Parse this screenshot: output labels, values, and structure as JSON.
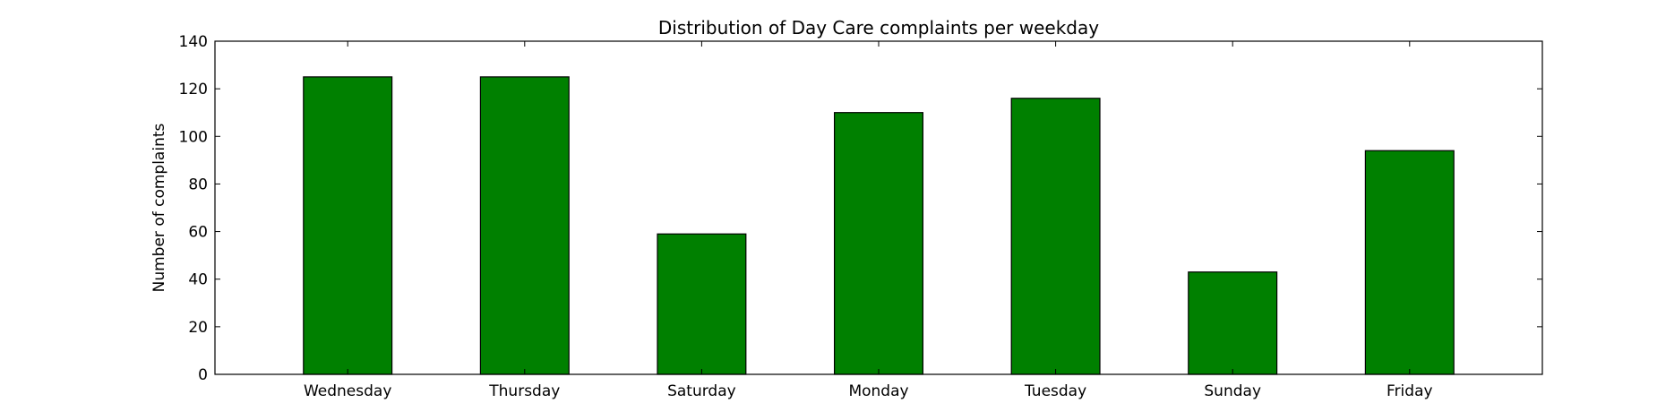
{
  "chart_data": {
    "type": "bar",
    "title": "Distribution of  Day Care complaints per weekday",
    "xlabel": "",
    "ylabel": "Number of complaints",
    "categories": [
      "Wednesday",
      "Thursday",
      "Saturday",
      "Monday",
      "Tuesday",
      "Sunday",
      "Friday"
    ],
    "values": [
      125,
      125,
      59,
      110,
      116,
      43,
      94
    ],
    "ylim": [
      0,
      140
    ],
    "yticks": [
      0,
      20,
      40,
      60,
      80,
      100,
      120,
      140
    ],
    "grid": false,
    "legend": "none",
    "bar_color": "#008000",
    "edge_color": "#000000"
  }
}
